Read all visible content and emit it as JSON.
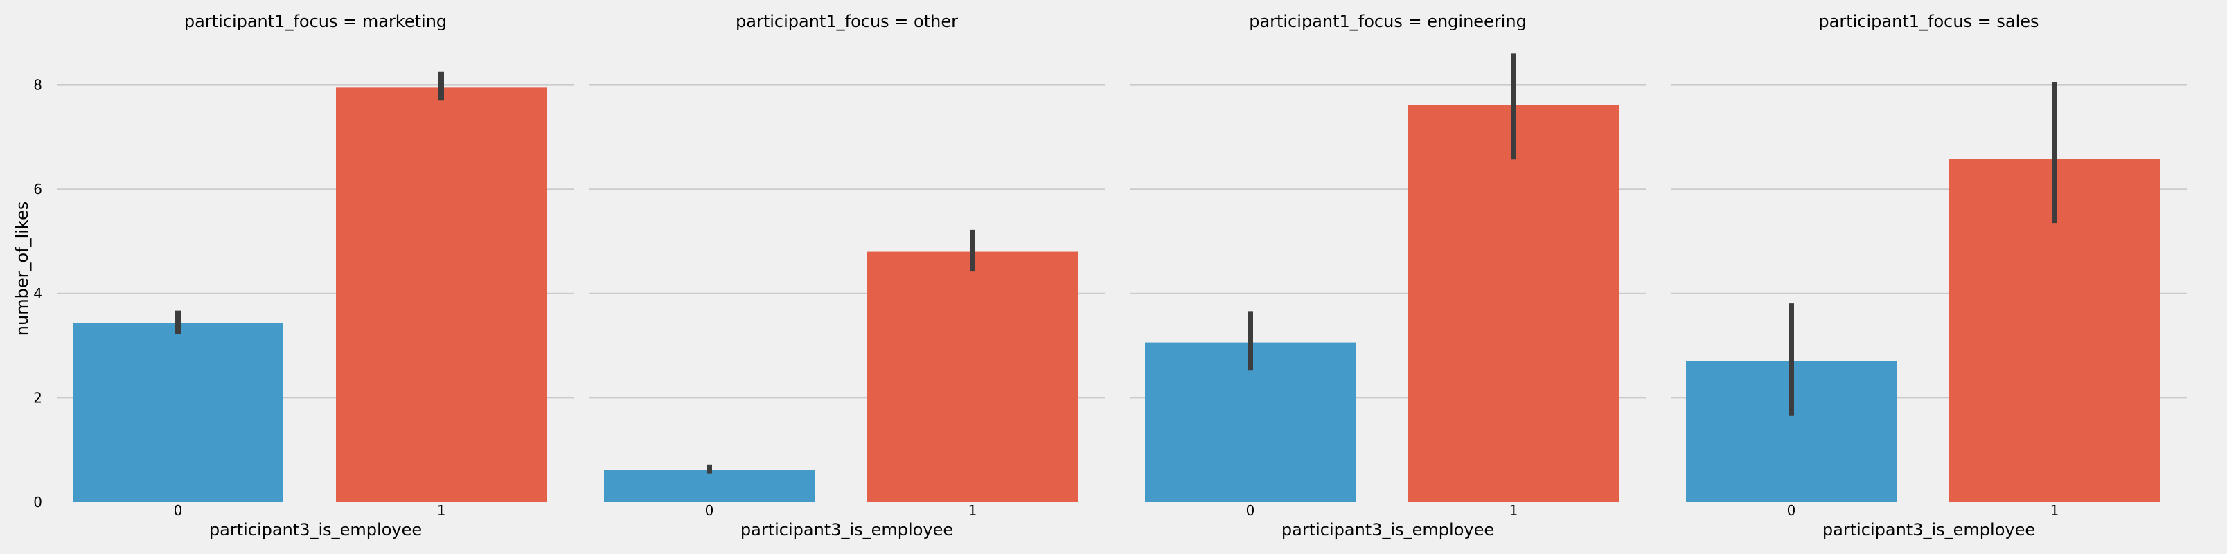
{
  "colors": {
    "background": "#f0f0f0",
    "grid": "#cbcbcb",
    "bar_0": "#449ac8",
    "bar_1": "#e46049",
    "errorbar": "#3d3d3d"
  },
  "chart_data": {
    "type": "bar",
    "ylabel": "number_of_likes",
    "ylim": [
      0,
      8.6
    ],
    "y_ticks": [
      0,
      2,
      4,
      6,
      8
    ],
    "grid": true,
    "categories": [
      "0",
      "1"
    ],
    "panels": [
      {
        "title": "participant1_focus = marketing",
        "xlabel": "participant3_is_employee",
        "values": [
          3.43,
          7.95
        ],
        "error_low": [
          3.22,
          7.7
        ],
        "error_high": [
          3.67,
          8.25
        ]
      },
      {
        "title": "participant1_focus = other",
        "xlabel": "participant3_is_employee",
        "values": [
          0.62,
          4.8
        ],
        "error_low": [
          0.55,
          4.42
        ],
        "error_high": [
          0.72,
          5.22
        ]
      },
      {
        "title": "participant1_focus = engineering",
        "xlabel": "participant3_is_employee",
        "values": [
          3.06,
          7.62
        ],
        "error_low": [
          2.52,
          6.57
        ],
        "error_high": [
          3.66,
          8.6
        ]
      },
      {
        "title": "participant1_focus = sales",
        "xlabel": "participant3_is_employee",
        "values": [
          2.7,
          6.58
        ],
        "error_low": [
          1.65,
          5.35
        ],
        "error_high": [
          3.81,
          8.05
        ]
      }
    ]
  }
}
